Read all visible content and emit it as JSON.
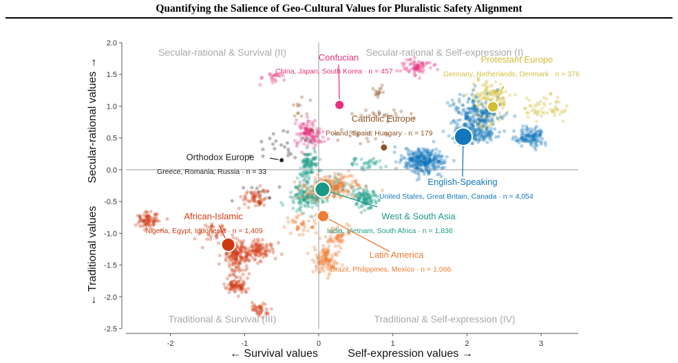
{
  "page_title": "Quantifying the Salience of Geo-Cultural Values for Pluralistic Safety Alignment",
  "chart_data": {
    "type": "scatter",
    "xlabel_left": "← Survival values",
    "xlabel_right": "Self-expression values →",
    "ylabel_top": "Secular-rational values →",
    "ylabel_bottom": "← Traditional values",
    "xlim": [
      -2.6,
      3.5
    ],
    "ylim": [
      -2.5,
      2.0
    ],
    "xticks": [
      -2,
      -1,
      0,
      1,
      2,
      3
    ],
    "yticks": [
      -2.5,
      -2.0,
      -1.5,
      -1.0,
      -0.5,
      0.0,
      0.5,
      1.0,
      1.5,
      2.0
    ],
    "grid": false,
    "quadrants": [
      {
        "label": "Secular-rational & Survival (II)",
        "x": -1.3,
        "y": 1.85
      },
      {
        "label": "Secular-rational & Self-expression (I)",
        "x": 1.7,
        "y": 1.85
      },
      {
        "label": "Traditional & Survival (III)",
        "x": -1.3,
        "y": -2.35
      },
      {
        "label": "Traditional & Self-expression (IV)",
        "x": 1.7,
        "y": -2.35
      }
    ],
    "groups": [
      {
        "name": "Confucian",
        "countries": "China, Japan, South Korea",
        "n_label": "n = 457",
        "color": "#e7307b",
        "centroid": [
          0.28,
          1.02
        ]
      },
      {
        "name": "Protestant Europe",
        "countries": "Germany, Netherlands, Denmark",
        "n_label": "n = 376",
        "color": "#d2bd3a",
        "centroid": [
          2.35,
          0.99
        ]
      },
      {
        "name": "Catholic Europe",
        "countries": "Poland, Spain, Hungary",
        "n_label": "n = 179",
        "color": "#8e5427",
        "centroid": [
          0.88,
          0.35
        ]
      },
      {
        "name": "English-Speaking",
        "countries": "United States, Great Britain, Canada",
        "n_label": "n = 4,054",
        "color": "#1477bb",
        "centroid": [
          1.95,
          0.52
        ]
      },
      {
        "name": "Orthodox Europe",
        "countries": "Greece, Romania, Russia",
        "n_label": "n = 33",
        "color": "#222222",
        "centroid": [
          -0.5,
          0.15
        ]
      },
      {
        "name": "West & South Asia",
        "countries": "India, Vietnam, South Africa",
        "n_label": "n = 1,836",
        "color": "#1a9a86",
        "centroid": [
          0.05,
          -0.31
        ]
      },
      {
        "name": "African-Islamic",
        "countries": "Nigeria, Egypt, Indonesia",
        "n_label": "n = 1,409",
        "color": "#cf3a12",
        "centroid": [
          -1.22,
          -1.18
        ]
      },
      {
        "name": "Latin America",
        "countries": "Brazil, Philippines, Mexico",
        "n_label": "n = 1,066",
        "color": "#ef7a30",
        "centroid": [
          0.06,
          -0.73
        ]
      }
    ]
  }
}
